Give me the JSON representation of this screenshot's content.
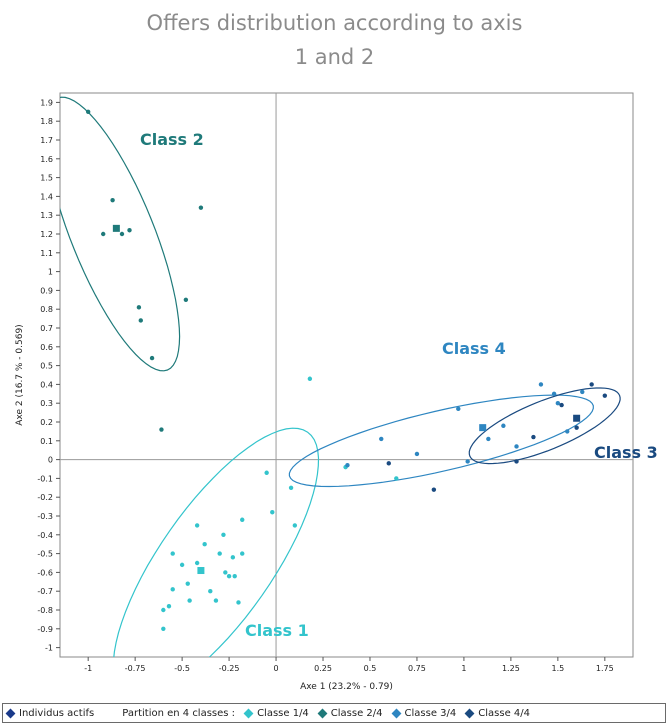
{
  "title": {
    "line1": "Offers distribution according to axis",
    "line2": "1 and 2"
  },
  "chart_data": {
    "type": "scatter",
    "xlabel": "Axe 1 (23.2% - 0.79)",
    "ylabel": "Axe 2 (16.7 % - 0.569)",
    "xlim": [
      -1.15,
      1.9
    ],
    "ylim": [
      -1.05,
      1.95
    ],
    "x_ticks": [
      -1,
      -0.75,
      -0.5,
      -0.25,
      0,
      0.25,
      0.5,
      0.75,
      1,
      1.25,
      1.5,
      1.75
    ],
    "x_tick_labels": [
      "-1",
      "-0.75",
      "-0.5",
      "-0.25",
      "0",
      "0.25",
      "0.5",
      "0.75",
      "1",
      "1.25",
      "1.5",
      "1.75"
    ],
    "y_ticks": [
      -1,
      -0.9,
      -0.8,
      -0.7,
      -0.6,
      -0.5,
      -0.4,
      -0.3,
      -0.2,
      -0.1,
      0,
      0.1,
      0.2,
      0.3,
      0.4,
      0.5,
      0.6,
      0.7,
      0.8,
      0.9,
      1,
      1.1,
      1.2,
      1.3,
      1.4,
      1.5,
      1.6,
      1.7,
      1.8,
      1.9
    ],
    "y_tick_labels": [
      "-1",
      "-0.9",
      "-0.8",
      "-0.7",
      "-0.6",
      "-0.5",
      "-0.4",
      "-0.3",
      "-0.2",
      "-0.1",
      "0",
      "0.1",
      "0.2",
      "0.3",
      "0.4",
      "0.5",
      "0.6",
      "0.7",
      "0.8",
      "0.9",
      "1",
      "1.1",
      "1.2",
      "1.3",
      "1.4",
      "1.5",
      "1.6",
      "1.7",
      "1.8",
      "1.9"
    ],
    "grid": false,
    "legend_position": "bottom",
    "series": [
      {
        "name": "Classe 1/4",
        "color": "#33c4cc",
        "label": "Class 1",
        "label_color": "#33c4cc",
        "centroid": [
          -0.4,
          -0.59
        ],
        "ellipse": {
          "cx": -0.32,
          "cy": -0.55,
          "rx": 0.85,
          "ry": 0.3,
          "angle": 55
        },
        "points": [
          [
            -0.6,
            -0.9
          ],
          [
            -0.6,
            -0.8
          ],
          [
            -0.55,
            -0.5
          ],
          [
            -0.55,
            -0.69
          ],
          [
            -0.57,
            -0.78
          ],
          [
            -0.5,
            -0.56
          ],
          [
            -0.47,
            -0.66
          ],
          [
            -0.46,
            -0.75
          ],
          [
            -0.42,
            -0.35
          ],
          [
            -0.42,
            -0.55
          ],
          [
            -0.38,
            -0.45
          ],
          [
            -0.35,
            -0.7
          ],
          [
            -0.3,
            -0.5
          ],
          [
            -0.28,
            -0.4
          ],
          [
            -0.27,
            -0.6
          ],
          [
            -0.25,
            -0.62
          ],
          [
            -0.23,
            -0.52
          ],
          [
            -0.22,
            -0.62
          ],
          [
            -0.2,
            -0.76
          ],
          [
            -0.18,
            -0.32
          ],
          [
            -0.18,
            -0.5
          ],
          [
            -0.05,
            -0.07
          ],
          [
            -0.02,
            -0.28
          ],
          [
            0.08,
            -0.15
          ],
          [
            0.1,
            -0.35
          ],
          [
            0.18,
            0.43
          ],
          [
            0.37,
            -0.04
          ],
          [
            0.64,
            -0.1
          ],
          [
            -0.32,
            -0.75
          ]
        ]
      },
      {
        "name": "Classe 2/4",
        "color": "#1f7a7a",
        "label": "Class 2",
        "label_color": "#1f7a7a",
        "centroid": [
          -0.85,
          1.23
        ],
        "ellipse": {
          "cx": -0.87,
          "cy": 1.2,
          "rx": 0.78,
          "ry": 0.22,
          "angle": -68
        },
        "points": [
          [
            -1.0,
            1.85
          ],
          [
            -0.87,
            1.38
          ],
          [
            -0.82,
            1.2
          ],
          [
            -0.78,
            1.22
          ],
          [
            -0.73,
            0.81
          ],
          [
            -0.72,
            0.74
          ],
          [
            -0.66,
            0.54
          ],
          [
            -0.4,
            1.34
          ],
          [
            -0.48,
            0.85
          ],
          [
            -0.92,
            1.2
          ],
          [
            -0.61,
            0.16
          ]
        ]
      },
      {
        "name": "Classe 3/4",
        "color": "#2e86c1",
        "label": "Class 4",
        "label_color": "#2e86c1",
        "centroid": [
          1.1,
          0.17
        ],
        "ellipse": {
          "cx": 0.88,
          "cy": 0.1,
          "rx": 0.83,
          "ry": 0.16,
          "angle": 13
        },
        "points": [
          [
            0.56,
            0.11
          ],
          [
            0.75,
            0.03
          ],
          [
            0.97,
            0.27
          ],
          [
            1.02,
            -0.01
          ],
          [
            1.13,
            0.11
          ],
          [
            1.21,
            0.18
          ],
          [
            1.28,
            0.07
          ],
          [
            1.41,
            0.4
          ],
          [
            1.48,
            0.35
          ],
          [
            1.55,
            0.15
          ],
          [
            1.63,
            0.36
          ],
          [
            1.5,
            0.3
          ],
          [
            0.38,
            -0.03
          ]
        ]
      },
      {
        "name": "Classe 4/4",
        "color": "#1a4a80",
        "label": "Class 3",
        "label_color": "#1a4a80",
        "centroid": [
          1.6,
          0.22
        ],
        "ellipse": {
          "cx": 1.43,
          "cy": 0.18,
          "rx": 0.43,
          "ry": 0.13,
          "angle": 22
        },
        "points": [
          [
            0.6,
            -0.02
          ],
          [
            0.84,
            -0.16
          ],
          [
            1.28,
            -0.01
          ],
          [
            1.37,
            0.12
          ],
          [
            1.52,
            0.29
          ],
          [
            1.6,
            0.17
          ],
          [
            1.75,
            0.34
          ],
          [
            1.68,
            0.4
          ]
        ]
      }
    ]
  },
  "legend": {
    "individus": "Individus actifs",
    "individus_color": "#1a3a8a",
    "partition": "Partition en 4 classes :",
    "items": [
      {
        "label": "Classe 1/4",
        "color": "#33c4cc"
      },
      {
        "label": "Classe 2/4",
        "color": "#1f7a7a"
      },
      {
        "label": "Classe 3/4",
        "color": "#2e86c1"
      },
      {
        "label": "Classe 4/4",
        "color": "#1a4a80"
      }
    ]
  }
}
